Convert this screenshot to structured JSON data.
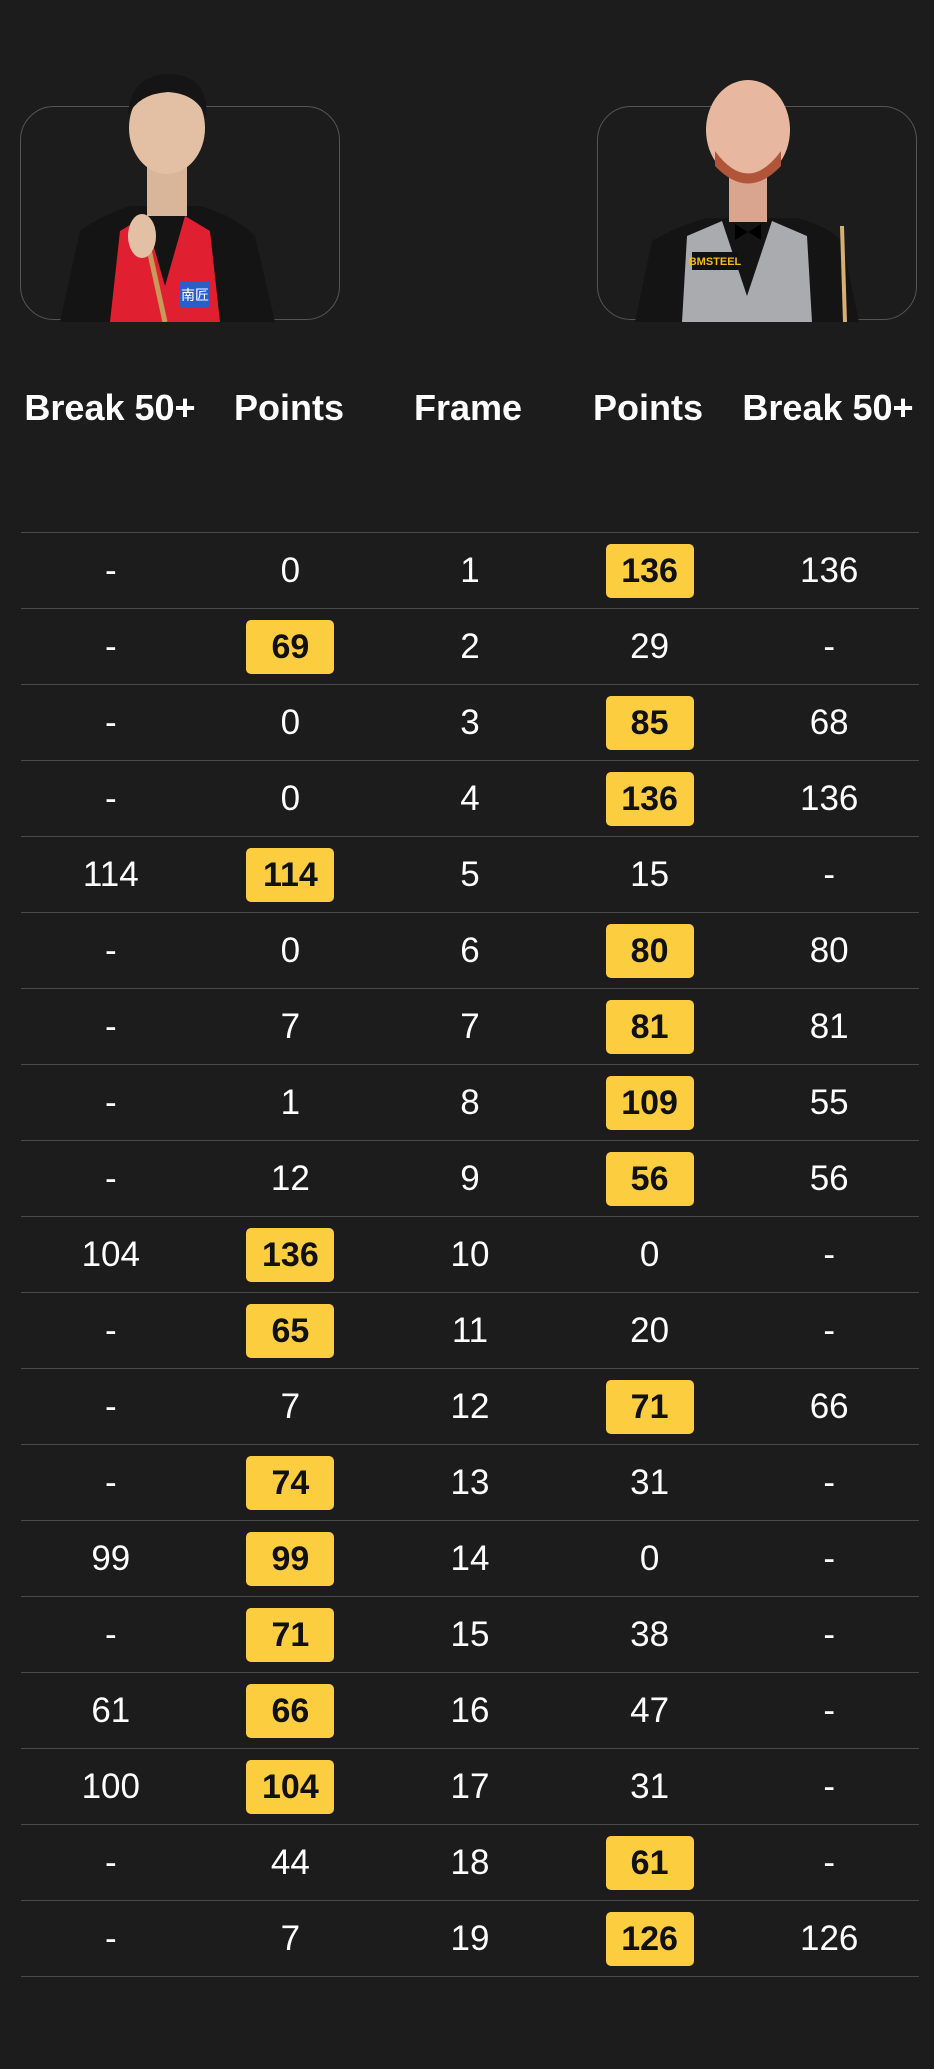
{
  "players": [
    {
      "name": "player-left",
      "vest_color": "#e02030",
      "sponsor_text": "南匠"
    },
    {
      "name": "player-right",
      "vest_color": "#a9abae",
      "sponsor_text": "BMSTEEL"
    }
  ],
  "headers": {
    "left_break": "Break 50+",
    "left_points": "Points",
    "frame": "Frame",
    "right_points": "Points",
    "right_break": "Break 50+"
  },
  "highlight_color": "#fccd3e",
  "rows": [
    {
      "lb": "-",
      "lp": "0",
      "f": "1",
      "rp": "136",
      "rb": "136",
      "winner": "right"
    },
    {
      "lb": "-",
      "lp": "69",
      "f": "2",
      "rp": "29",
      "rb": "-",
      "winner": "left"
    },
    {
      "lb": "-",
      "lp": "0",
      "f": "3",
      "rp": "85",
      "rb": "68",
      "winner": "right"
    },
    {
      "lb": "-",
      "lp": "0",
      "f": "4",
      "rp": "136",
      "rb": "136",
      "winner": "right"
    },
    {
      "lb": "114",
      "lp": "114",
      "f": "5",
      "rp": "15",
      "rb": "-",
      "winner": "left"
    },
    {
      "lb": "-",
      "lp": "0",
      "f": "6",
      "rp": "80",
      "rb": "80",
      "winner": "right"
    },
    {
      "lb": "-",
      "lp": "7",
      "f": "7",
      "rp": "81",
      "rb": "81",
      "winner": "right"
    },
    {
      "lb": "-",
      "lp": "1",
      "f": "8",
      "rp": "109",
      "rb": "55",
      "winner": "right"
    },
    {
      "lb": "-",
      "lp": "12",
      "f": "9",
      "rp": "56",
      "rb": "56",
      "winner": "right"
    },
    {
      "lb": "104",
      "lp": "136",
      "f": "10",
      "rp": "0",
      "rb": "-",
      "winner": "left"
    },
    {
      "lb": "-",
      "lp": "65",
      "f": "11",
      "rp": "20",
      "rb": "-",
      "winner": "left"
    },
    {
      "lb": "-",
      "lp": "7",
      "f": "12",
      "rp": "71",
      "rb": "66",
      "winner": "right"
    },
    {
      "lb": "-",
      "lp": "74",
      "f": "13",
      "rp": "31",
      "rb": "-",
      "winner": "left"
    },
    {
      "lb": "99",
      "lp": "99",
      "f": "14",
      "rp": "0",
      "rb": "-",
      "winner": "left"
    },
    {
      "lb": "-",
      "lp": "71",
      "f": "15",
      "rp": "38",
      "rb": "-",
      "winner": "left"
    },
    {
      "lb": "61",
      "lp": "66",
      "f": "16",
      "rp": "47",
      "rb": "-",
      "winner": "left"
    },
    {
      "lb": "100",
      "lp": "104",
      "f": "17",
      "rp": "31",
      "rb": "-",
      "winner": "left"
    },
    {
      "lb": "-",
      "lp": "44",
      "f": "18",
      "rp": "61",
      "rb": "-",
      "winner": "right"
    },
    {
      "lb": "-",
      "lp": "7",
      "f": "19",
      "rp": "126",
      "rb": "126",
      "winner": "right"
    }
  ]
}
